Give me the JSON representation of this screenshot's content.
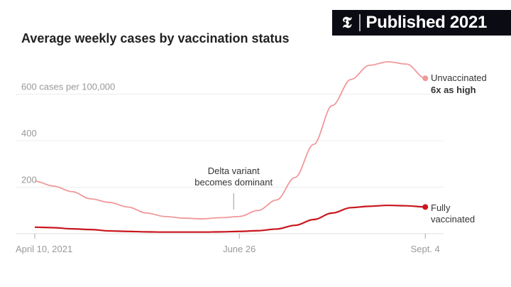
{
  "badge": {
    "logo": "𝕿",
    "label": "Published 2021"
  },
  "chart_data": {
    "type": "line",
    "title": "Average weekly cases by vaccination status",
    "ylabel_unit": "cases per 100,000",
    "y_ticks": [
      {
        "value": 200,
        "label": "200"
      },
      {
        "value": 400,
        "label": "400"
      },
      {
        "value": 600,
        "label": "600 cases per 100,000"
      }
    ],
    "ylim": [
      0,
      750
    ],
    "x_start": "April 10, 2021",
    "x_end": "Sept. 4",
    "x_step": "weekly",
    "x_ticks": [
      {
        "week": 0,
        "label": "April 10, 2021"
      },
      {
        "week": 11,
        "label": "June 26"
      },
      {
        "week": 21,
        "label": "Sept. 4"
      }
    ],
    "grid": true,
    "series": [
      {
        "name": "Unvaccinated",
        "color": "#f0989a",
        "values": [
          226,
          205,
          181,
          150,
          135,
          115,
          89,
          74,
          67,
          64,
          69,
          74,
          100,
          145,
          242,
          384,
          551,
          663,
          724,
          739,
          729,
          668
        ]
      },
      {
        "name": "Fully vaccinated",
        "color": "#c8161d",
        "values": [
          28,
          26,
          21,
          18,
          12,
          10,
          8,
          7,
          7,
          7,
          8,
          10,
          13,
          20,
          36,
          61,
          89,
          112,
          118,
          122,
          120,
          115
        ]
      }
    ],
    "annotations": {
      "delta": {
        "week": 11,
        "line1": "Delta variant",
        "line2": "becomes dominant"
      },
      "unvax_label": "Unvaccinated",
      "unvax_note": "6x as high",
      "vax_label1": "Fully",
      "vax_label2": "vaccinated"
    }
  }
}
